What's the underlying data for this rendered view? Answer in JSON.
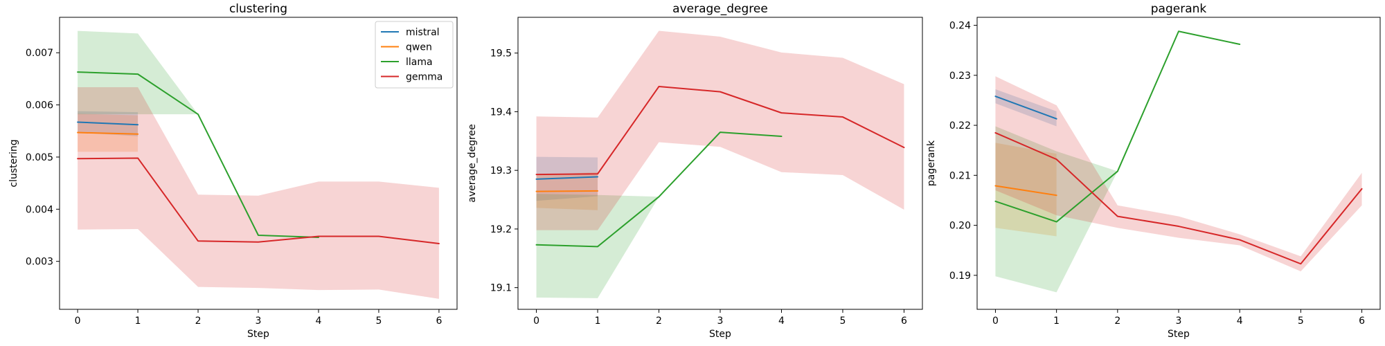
{
  "chart_data": [
    {
      "type": "line",
      "title": "clustering",
      "xlabel": "Step",
      "ylabel": "clustering",
      "xlim": [
        -0.3,
        6.3
      ],
      "ylim": [
        0.00208,
        0.00768
      ],
      "xticks": [
        0,
        1,
        2,
        3,
        4,
        5,
        6
      ],
      "yticks": [
        0.003,
        0.004,
        0.005,
        0.006,
        0.007
      ],
      "ytick_labels": [
        "0.003",
        "0.004",
        "0.005",
        "0.006",
        "0.007"
      ],
      "legend": {
        "placement": "top-right",
        "entries": [
          "mistral",
          "qwen",
          "llama",
          "gemma"
        ]
      },
      "series": [
        {
          "name": "mistral",
          "color": "#1f77b4",
          "x": [
            0,
            1
          ],
          "y": [
            0.00567,
            0.00562
          ],
          "lower": [
            0.00547,
            0.0054
          ],
          "upper": [
            0.00588,
            0.00586
          ]
        },
        {
          "name": "qwen",
          "color": "#ff7f0e",
          "x": [
            0,
            1
          ],
          "y": [
            0.00547,
            0.00544
          ],
          "lower": [
            0.0051,
            0.0051
          ],
          "upper": [
            0.00583,
            0.0058
          ]
        },
        {
          "name": "llama",
          "color": "#2ca02c",
          "x": [
            0,
            1,
            2,
            3,
            4
          ],
          "y": [
            0.00663,
            0.00659,
            0.00582,
            0.0035,
            0.00346
          ],
          "lower": [
            0.00582,
            0.00582,
            0.00582,
            0.0035,
            0.00346
          ],
          "upper": [
            0.00742,
            0.00737,
            0.00582,
            0.0035,
            0.00346
          ]
        },
        {
          "name": "gemma",
          "color": "#d62728",
          "x": [
            0,
            1,
            2,
            3,
            4,
            5,
            6
          ],
          "y": [
            0.00497,
            0.00498,
            0.00339,
            0.00337,
            0.00348,
            0.00348,
            0.00334
          ],
          "lower": [
            0.00361,
            0.00362,
            0.00251,
            0.00249,
            0.00245,
            0.00246,
            0.00228
          ],
          "upper": [
            0.00634,
            0.00634,
            0.00428,
            0.00426,
            0.00453,
            0.00453,
            0.00441
          ]
        }
      ]
    },
    {
      "type": "line",
      "title": "average_degree",
      "xlabel": "Step",
      "ylabel": "average_degree",
      "xlim": [
        -0.3,
        6.3
      ],
      "ylim": [
        19.063,
        19.561
      ],
      "xticks": [
        0,
        1,
        2,
        3,
        4,
        5,
        6
      ],
      "yticks": [
        19.1,
        19.2,
        19.3,
        19.4,
        19.5
      ],
      "ytick_labels": [
        "19.1",
        "19.2",
        "19.3",
        "19.4",
        "19.5"
      ],
      "series": [
        {
          "name": "mistral",
          "color": "#1f77b4",
          "x": [
            0,
            1
          ],
          "y": [
            19.285,
            19.289
          ],
          "lower": [
            19.248,
            19.256
          ],
          "upper": [
            19.323,
            19.322
          ]
        },
        {
          "name": "qwen",
          "color": "#ff7f0e",
          "x": [
            0,
            1
          ],
          "y": [
            19.264,
            19.265
          ],
          "lower": [
            19.236,
            19.232
          ],
          "upper": [
            19.292,
            19.297
          ]
        },
        {
          "name": "llama",
          "color": "#2ca02c",
          "x": [
            0,
            1,
            2,
            3,
            4
          ],
          "y": [
            19.173,
            19.17,
            19.255,
            19.365,
            19.358
          ],
          "lower": [
            19.083,
            19.082,
            19.255,
            19.365,
            19.358
          ],
          "upper": [
            19.26,
            19.258,
            19.255,
            19.365,
            19.358
          ]
        },
        {
          "name": "gemma",
          "color": "#d62728",
          "x": [
            0,
            1,
            2,
            3,
            4,
            5,
            6
          ],
          "y": [
            19.293,
            19.294,
            19.443,
            19.434,
            19.398,
            19.391,
            19.339
          ],
          "lower": [
            19.198,
            19.198,
            19.348,
            19.34,
            19.297,
            19.292,
            19.233
          ],
          "upper": [
            19.392,
            19.39,
            19.538,
            19.528,
            19.501,
            19.492,
            19.447
          ]
        }
      ]
    },
    {
      "type": "line",
      "title": "pagerank",
      "xlabel": "Step",
      "ylabel": "pagerank",
      "xlim": [
        -0.3,
        6.3
      ],
      "ylim": [
        0.1832,
        0.2416
      ],
      "xticks": [
        0,
        1,
        2,
        3,
        4,
        5,
        6
      ],
      "yticks": [
        0.19,
        0.2,
        0.21,
        0.22,
        0.23,
        0.24
      ],
      "ytick_labels": [
        "0.19",
        "0.20",
        "0.21",
        "0.22",
        "0.23",
        "0.24"
      ],
      "series": [
        {
          "name": "mistral",
          "color": "#1f77b4",
          "x": [
            0,
            1
          ],
          "y": [
            0.2258,
            0.2213
          ],
          "lower": [
            0.2244,
            0.2198
          ],
          "upper": [
            0.2272,
            0.2228
          ]
        },
        {
          "name": "qwen",
          "color": "#ff7f0e",
          "x": [
            0,
            1
          ],
          "y": [
            0.2079,
            0.206
          ],
          "lower": [
            0.1995,
            0.1978
          ],
          "upper": [
            0.2165,
            0.2143
          ]
        },
        {
          "name": "llama",
          "color": "#2ca02c",
          "x": [
            0,
            1,
            2,
            3,
            4
          ],
          "y": [
            0.2048,
            0.2007,
            0.2108,
            0.2388,
            0.2362
          ],
          "lower": [
            0.1898,
            0.1866,
            0.2108,
            0.2388,
            0.2362
          ],
          "upper": [
            0.2198,
            0.2148,
            0.2108,
            0.2388,
            0.2362
          ]
        },
        {
          "name": "gemma",
          "color": "#d62728",
          "x": [
            0,
            1,
            2,
            3,
            4,
            5,
            6
          ],
          "y": [
            0.2185,
            0.2132,
            0.2018,
            0.1998,
            0.1971,
            0.1923,
            0.2073
          ],
          "lower": [
            0.207,
            0.202,
            0.1995,
            0.1975,
            0.196,
            0.1908,
            0.204
          ],
          "upper": [
            0.2298,
            0.224,
            0.204,
            0.2018,
            0.1982,
            0.1938,
            0.2105
          ]
        }
      ]
    }
  ]
}
